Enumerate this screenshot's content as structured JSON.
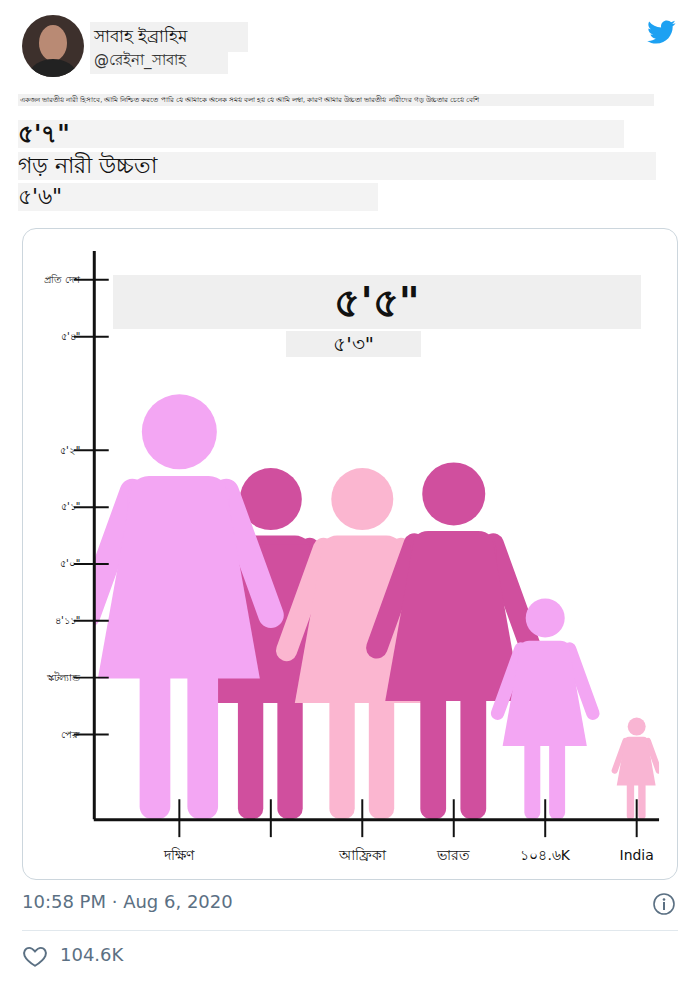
{
  "tweet": {
    "name": "সাবাহ ইব্রাহিম",
    "handle": "@রেইনা_সাবাহ",
    "text": "একজন ভারতীয় নারী হিসাবে, আমি নিশ্চিত করতে পারি যে আমাকে অনেক সময় বলা হয় যে আমি লম্বা, কারণ আমার উচ্চতা ভারতীয় নারীদের গড় উচ্চতার চেয়ে বেশি",
    "lines": [
      "৫'৭\"",
      "গড় নারী উচ্চতা",
      "৫'৬\""
    ],
    "time": "10:58 PM · Aug 6, 2020",
    "likes": "104.6K"
  },
  "chart_data": {
    "type": "pictogram",
    "categories": [
      "দক্ষিণ",
      null,
      "আফ্রিকা",
      "ভারত",
      "১০৪.৬K",
      "India"
    ],
    "values": [
      63.0,
      61.7,
      61.7,
      61.8,
      59.4,
      57.3
    ],
    "colors": [
      "#f3a6f3",
      "#d04f9e",
      "#fbb6d0",
      "#d04f9e",
      "#f3a6f3",
      "#f9b5d3"
    ],
    "ylim": [
      55.5,
      65.5
    ],
    "yticks": [
      {
        "value": 57,
        "label": "পেরু"
      },
      {
        "value": 58,
        "label": "স্কটল্যান্ড"
      },
      {
        "value": 59,
        "label": "৪'১১\""
      },
      {
        "value": 60,
        "label": "৫'০\""
      },
      {
        "value": 61,
        "label": "৫'১\""
      },
      {
        "value": 62,
        "label": "৫'২\""
      },
      {
        "value": 64,
        "label": "৫'৪\""
      },
      {
        "value": 65,
        "label": "প্রতি দেশ"
      }
    ],
    "annotations": [
      "৫'৫\"",
      "৫'৩\""
    ],
    "grid": false
  }
}
